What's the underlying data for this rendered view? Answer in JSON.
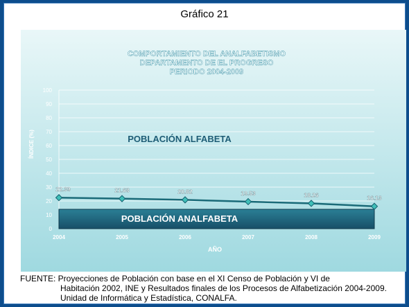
{
  "slide_title": "Gráfico 21",
  "chart_data": {
    "type": "line",
    "title": [
      "COMPORTAMIENTO DEL ANALFABETISMO",
      "DEPARTAMENTO DE EL PROGRESO",
      "PERIODO 2004-2009"
    ],
    "xlabel": "AÑO",
    "ylabel": "ÍNDICE (%)",
    "ylim": [
      0,
      100
    ],
    "yticks": [
      0,
      10,
      20,
      30,
      40,
      50,
      60,
      70,
      80,
      90,
      100
    ],
    "categories": [
      "2004",
      "2005",
      "2006",
      "2007",
      "2008",
      "2009"
    ],
    "values": [
      22.39,
      21.68,
      20.82,
      19.53,
      18.26,
      16.13
    ],
    "data_labels": [
      "22.39",
      "21.68",
      "20.82",
      "19.53",
      "18.26",
      "16.13"
    ],
    "region_labels": {
      "upper": "POBLACIÓN ALFABETA",
      "lower": "POBLACIÓN ANALFABETA"
    },
    "grid": true,
    "colors": {
      "line": "#1a6a78",
      "marker": "#3fbfb8",
      "lower_band": "#1d6680",
      "background_top": "#e9f7f8",
      "background_bottom": "#9fd9e0"
    }
  },
  "source": {
    "line1": "FUENTE: Proyecciones de Población con base en el XI Censo de Población y VI de",
    "line2": "Habitación 2002, INE y Resultados finales de los Procesos de Alfabetización 2004-2009.",
    "line3": "Unidad de Informática y Estadística, CONALFA."
  }
}
